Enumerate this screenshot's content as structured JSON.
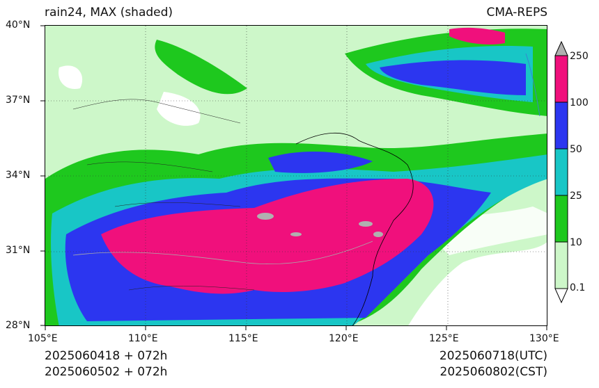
{
  "header": {
    "left_title": "rain24, MAX (shaded)",
    "right_title": "CMA-REPS"
  },
  "axes": {
    "lat_ticks": [
      "40°N",
      "37°N",
      "34°N",
      "31°N",
      "28°N"
    ],
    "lon_ticks": [
      "105°E",
      "110°E",
      "115°E",
      "120°E",
      "125°E",
      "130°E"
    ],
    "lat_range": [
      28,
      40
    ],
    "lon_range": [
      105,
      130
    ],
    "gridlines": "dotted"
  },
  "colorbar": {
    "labels": [
      "250",
      "100",
      "50",
      "25",
      "10",
      "0.1"
    ],
    "levels": [
      0.1,
      10,
      25,
      50,
      100,
      250
    ],
    "colors": {
      "below_0_1": "#ffffff",
      "0_1_to_10": "#cdf7c9",
      "10_to_25": "#1ec81e",
      "25_to_50": "#18c6c6",
      "50_to_100": "#2c36f0",
      "100_to_250": "#f0107c",
      "above_250": "#b0b0b0"
    }
  },
  "footer": {
    "left_line1": "2025060418  +  072h",
    "left_line2": "2025060502  +  072h",
    "right_line1": "2025060718(UTC)",
    "right_line2": "2025060802(CST)"
  }
}
